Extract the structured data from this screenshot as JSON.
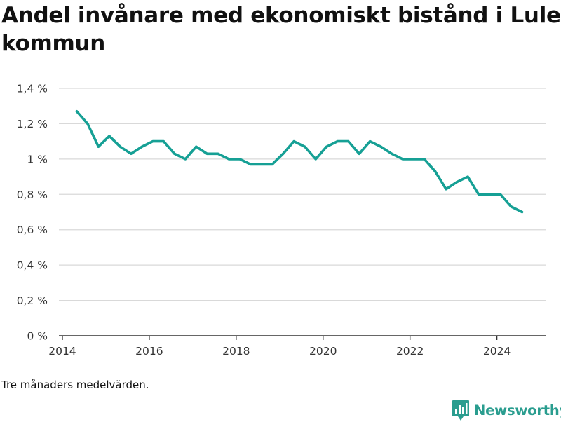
{
  "title_lines": [
    "Andel invånare med ekonomiskt bistånd i Luleå",
    "kommun"
  ],
  "footnote": "Tre månaders medelvärden.",
  "brand": {
    "name": "Newsworthy",
    "logo_icon": "newsworthy-logo-icon",
    "color": "#2a9d8f"
  },
  "colors": {
    "line": "#16a095",
    "grid": "#d9d9d9",
    "axis": "#333333"
  },
  "chart_data": {
    "type": "line",
    "title": "Andel invånare med ekonomiskt bistånd i Luleå kommun",
    "xlabel": "",
    "ylabel": "",
    "x_ticks": [
      2014,
      2016,
      2018,
      2020,
      2022,
      2024
    ],
    "x_tick_labels": [
      "2014",
      "2016",
      "2018",
      "2020",
      "2022",
      "2024"
    ],
    "xlim": [
      2013.92,
      2025.12
    ],
    "y_ticks": [
      0,
      0.2,
      0.4,
      0.6,
      0.8,
      1.0,
      1.2,
      1.4
    ],
    "y_tick_labels": [
      "0 %",
      "0,2 %",
      "0,4 %",
      "0,6 %",
      "0,8 %",
      "1 %",
      "1,2 %",
      "1,4 %"
    ],
    "ylim": [
      0,
      1.4
    ],
    "grid": true,
    "x": [
      2014.33,
      2014.58,
      2014.83,
      2015.08,
      2015.33,
      2015.58,
      2015.83,
      2016.08,
      2016.33,
      2016.58,
      2016.83,
      2017.08,
      2017.33,
      2017.58,
      2017.83,
      2018.08,
      2018.33,
      2018.58,
      2018.83,
      2019.08,
      2019.33,
      2019.58,
      2019.83,
      2020.08,
      2020.33,
      2020.58,
      2020.83,
      2021.08,
      2021.33,
      2021.58,
      2021.83,
      2022.08,
      2022.33,
      2022.58,
      2022.83,
      2023.08,
      2023.33,
      2023.58,
      2023.83,
      2024.08,
      2024.33,
      2024.58
    ],
    "y": [
      1.27,
      1.2,
      1.07,
      1.13,
      1.07,
      1.03,
      1.07,
      1.1,
      1.1,
      1.03,
      1.0,
      1.07,
      1.03,
      1.03,
      1.0,
      1.0,
      0.97,
      0.97,
      0.97,
      1.03,
      1.1,
      1.07,
      1.0,
      1.07,
      1.1,
      1.1,
      1.03,
      1.1,
      1.07,
      1.03,
      1.0,
      1.0,
      1.0,
      0.93,
      0.83,
      0.87,
      0.9,
      0.8,
      0.8,
      0.8,
      0.73,
      0.7
    ]
  }
}
